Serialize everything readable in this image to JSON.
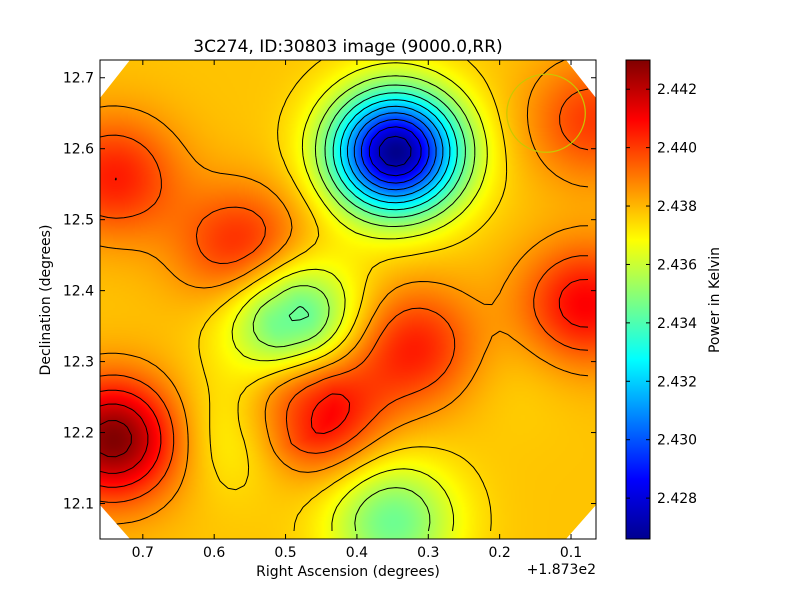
{
  "chart_data": {
    "type": "heatmap",
    "title": "3C274, ID:30803 image (9000.0,RR)",
    "xlabel": "Right Ascension (degrees)",
    "ylabel": "Declination (degrees)",
    "x_offset_label": "+1.873e2",
    "xlim": [
      0.76,
      0.065
    ],
    "ylim": [
      12.05,
      12.725
    ],
    "x_ticks": [
      0.7,
      0.6,
      0.5,
      0.4,
      0.3,
      0.2,
      0.1
    ],
    "x_tick_labels": [
      "0.7",
      "0.6",
      "0.5",
      "0.4",
      "0.3",
      "0.2",
      "0.1"
    ],
    "y_ticks": [
      12.1,
      12.2,
      12.3,
      12.4,
      12.5,
      12.6,
      12.7
    ],
    "y_tick_labels": [
      "12.1",
      "12.2",
      "12.3",
      "12.4",
      "12.5",
      "12.6",
      "12.7"
    ],
    "colormap": "jet",
    "colorbar": {
      "label": "Power in Kelvin",
      "range": [
        2.4266,
        2.443
      ],
      "ticks": [
        2.428,
        2.43,
        2.432,
        2.434,
        2.436,
        2.438,
        2.44,
        2.442
      ],
      "tick_labels": [
        "2.428",
        "2.430",
        "2.432",
        "2.434",
        "2.436",
        "2.438",
        "2.440",
        "2.442"
      ]
    },
    "contours": true,
    "beam_circle": {
      "ra": 0.135,
      "dec": 12.65,
      "radius_deg": 0.055,
      "color": "#c8c800"
    },
    "features": [
      {
        "kind": "min",
        "ra": 0.345,
        "dec": 12.595,
        "value": 2.4268
      },
      {
        "kind": "min",
        "ra": 0.49,
        "dec": 12.36,
        "value": 2.4335
      },
      {
        "kind": "min",
        "ra": 0.35,
        "dec": 12.075,
        "value": 2.4345
      },
      {
        "kind": "min",
        "ra": 0.565,
        "dec": 12.2,
        "value": 2.4365
      },
      {
        "kind": "min",
        "ra": 0.18,
        "dec": 12.28,
        "value": 2.4375
      },
      {
        "kind": "max",
        "ra": 0.74,
        "dec": 12.19,
        "value": 2.443
      },
      {
        "kind": "max",
        "ra": 0.46,
        "dec": 12.23,
        "value": 2.4415
      },
      {
        "kind": "max",
        "ra": 0.08,
        "dec": 12.38,
        "value": 2.441
      },
      {
        "kind": "max",
        "ra": 0.56,
        "dec": 12.46,
        "value": 2.4405
      },
      {
        "kind": "max",
        "ra": 0.74,
        "dec": 12.56,
        "value": 2.4405
      },
      {
        "kind": "max",
        "ra": 0.32,
        "dec": 12.32,
        "value": 2.4405
      },
      {
        "kind": "max",
        "ra": 0.07,
        "dec": 12.64,
        "value": 2.44
      }
    ]
  }
}
